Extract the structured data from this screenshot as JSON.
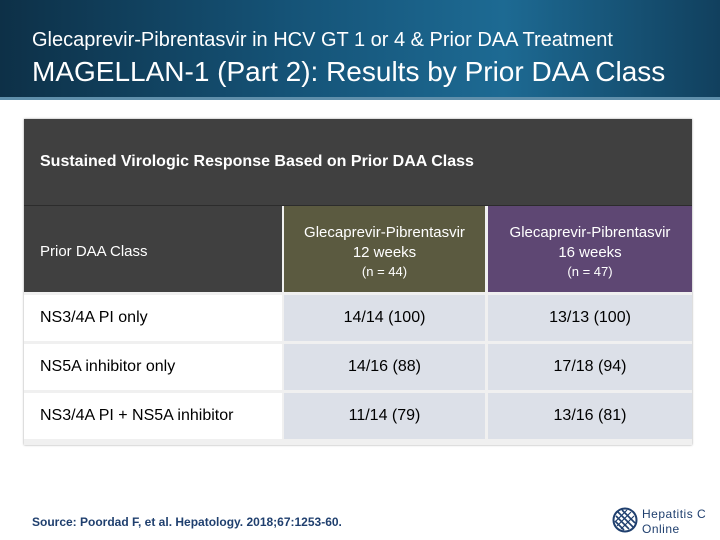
{
  "header": {
    "subtitle": "Glecaprevir-Pibrentasvir in HCV GT 1 or 4 & Prior DAA Treatment",
    "title": "MAGELLAN-1 (Part 2): Results by Prior DAA Class"
  },
  "table": {
    "banner": "Sustained Virologic Response Based on Prior DAA Class",
    "label_header": "Prior DAA Class",
    "columns": [
      {
        "line1": "Glecaprevir-Pibrentasvir",
        "line2": "12 weeks",
        "n": "(n = 44)"
      },
      {
        "line1": "Glecaprevir-Pibrentasvir",
        "line2": "16 weeks",
        "n": "(n = 47)"
      }
    ],
    "rows": [
      {
        "label": "NS3/4A PI only",
        "c1": "14/14 (100)",
        "c2": "13/13 (100)"
      },
      {
        "label": "NS5A inhibitor only",
        "c1": "14/16 (88)",
        "c2": "17/18 (94)"
      },
      {
        "label": "NS3/4A PI + NS5A inhibitor",
        "c1": "11/14 (79)",
        "c2": "13/16 (81)"
      }
    ]
  },
  "footer": {
    "source": "Source: Poordad F, et al. Hepatology. 2018;67:1253-60.",
    "logo_line1": "Hepatitis C",
    "logo_line2": "Online"
  },
  "colors": {
    "header_bg": "#155377",
    "col1_header": "#5b5a40",
    "col2_header": "#5e4773",
    "data_cell": "#dce0e8"
  }
}
